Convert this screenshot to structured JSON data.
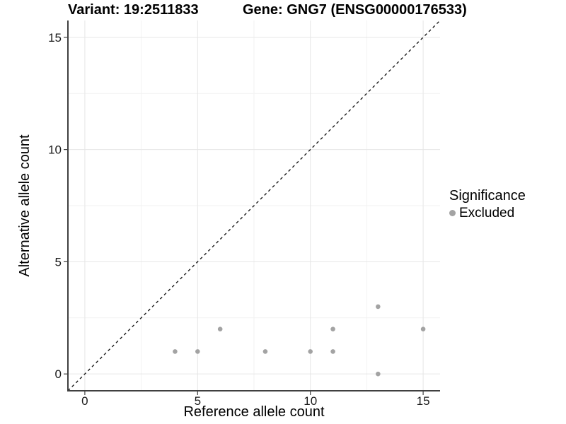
{
  "figure": {
    "title_left": "Variant: 19:2511833",
    "title_right": "Gene: GNG7 (ENSG00000176533)"
  },
  "chart_data": {
    "type": "scatter",
    "title": "Variant: 19:2511833   Gene: GNG7 (ENSG00000176533)",
    "title_left": "Variant: 19:2511833",
    "title_right": "Gene: GNG7 (ENSG00000176533)",
    "xlabel": "Reference allele count",
    "ylabel": "Alternative allele count",
    "xlim": [
      -0.75,
      15.75
    ],
    "ylim": [
      -0.75,
      15.75
    ],
    "x_ticks": [
      0,
      5,
      10,
      15
    ],
    "y_ticks": [
      0,
      5,
      10,
      15
    ],
    "x_minor_ticks": [
      2.5,
      7.5,
      12.5
    ],
    "y_minor_ticks": [
      2.5,
      7.5,
      12.5
    ],
    "grid": true,
    "identity_line": {
      "style": "dashed",
      "from": [
        -0.75,
        -0.75
      ],
      "to": [
        15.75,
        15.75
      ],
      "color": "#1a1a1a"
    },
    "series": [
      {
        "name": "Excluded",
        "color": "#a3a3a3",
        "points": [
          [
            4,
            1
          ],
          [
            5,
            1
          ],
          [
            6,
            2
          ],
          [
            8,
            1
          ],
          [
            10,
            1
          ],
          [
            11,
            1
          ],
          [
            11,
            2
          ],
          [
            13,
            0
          ],
          [
            13,
            3
          ],
          [
            15,
            2
          ]
        ]
      }
    ],
    "legend": {
      "title": "Significance",
      "position": "right",
      "items": [
        {
          "label": "Excluded",
          "color": "#a3a3a3",
          "marker": "circle"
        }
      ]
    },
    "colors": {
      "point": "#a3a3a3",
      "grid_major": "#e6e6e6",
      "grid_minor": "#f2f2f2",
      "axis": "#404040",
      "tick_text": "#1a1a1a",
      "text": "#000000",
      "background": "#ffffff"
    }
  }
}
